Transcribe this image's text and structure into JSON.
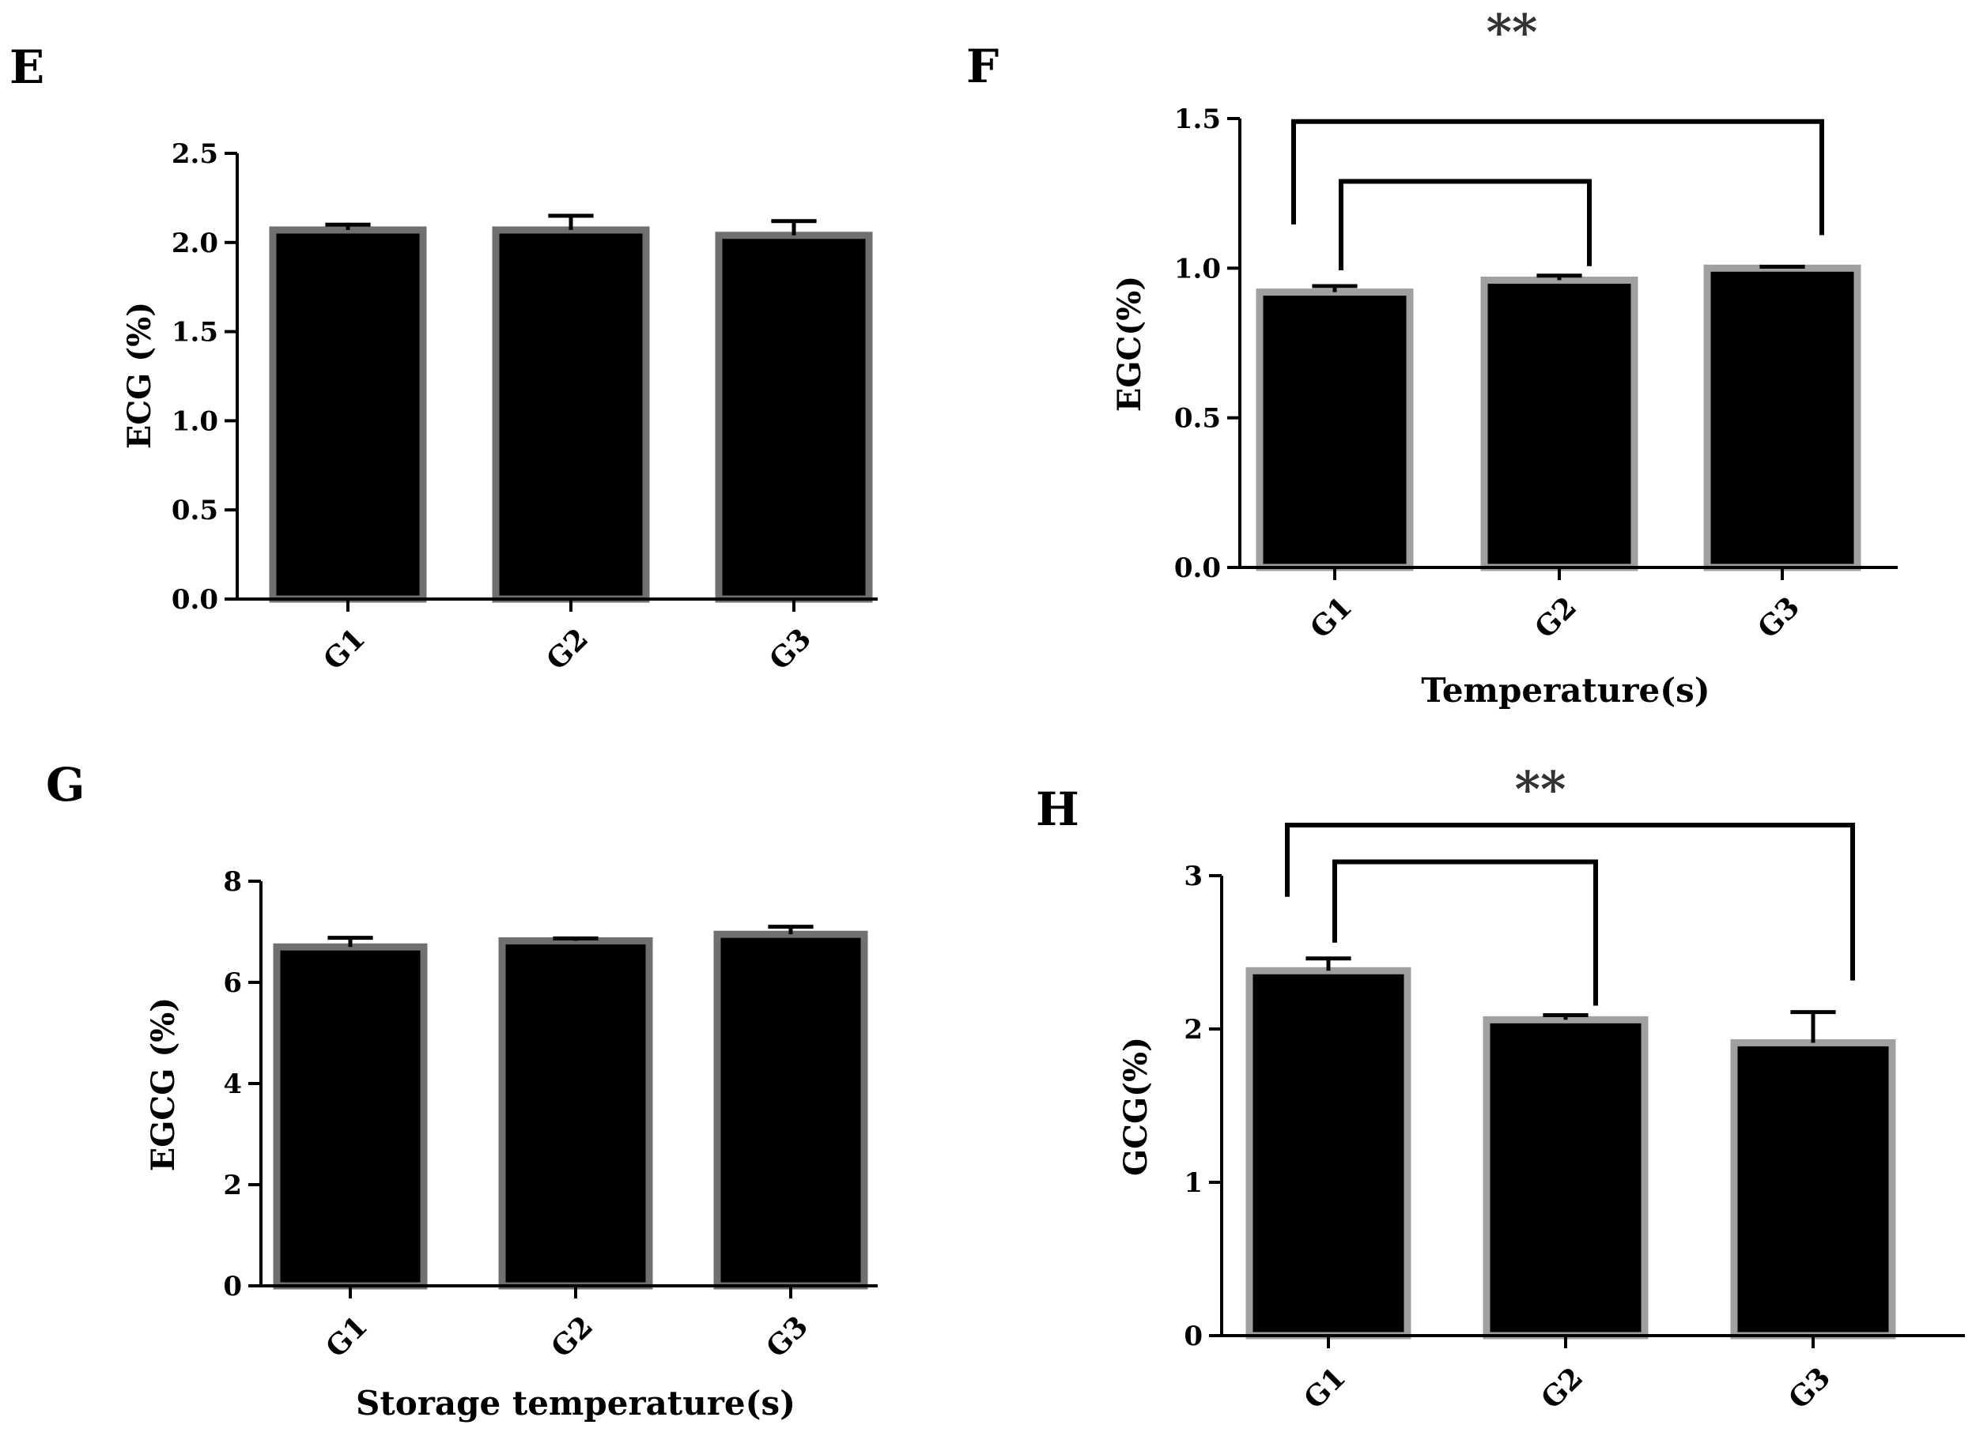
{
  "chart_data": [
    {
      "type": "bar",
      "panel": "E",
      "categories": [
        "G1",
        "G2",
        "G3"
      ],
      "values": [
        2.07,
        2.07,
        2.04
      ],
      "errors": [
        0.03,
        0.08,
        0.08
      ],
      "ylabel": "ECG (%)",
      "xlabel": "",
      "ylim": [
        0,
        2.5
      ],
      "yticks": [
        "0.0",
        "0.5",
        "1.0",
        "1.5",
        "2.0",
        "2.5"
      ],
      "significance": null,
      "bar_outline": "#707070"
    },
    {
      "type": "bar",
      "panel": "F",
      "categories": [
        "G1",
        "G2",
        "G3"
      ],
      "values": [
        0.92,
        0.96,
        1.0
      ],
      "errors": [
        0.02,
        0.015,
        0.005
      ],
      "ylabel": "EGC(%)",
      "xlabel": "Temperature(s)",
      "ylim": [
        0,
        1.5
      ],
      "yticks": [
        "0.0",
        "0.5",
        "1.0",
        "1.5"
      ],
      "significance": {
        "label": "**",
        "brackets": [
          {
            "from": "G1",
            "to": "G3",
            "level": 1.49
          },
          {
            "from": "G1",
            "to": "G2",
            "level": 1.29
          }
        ]
      },
      "bar_outline": "#a0a0a0"
    },
    {
      "type": "bar",
      "panel": "G",
      "categories": [
        "G1",
        "G2",
        "G3"
      ],
      "values": [
        6.7,
        6.82,
        6.95
      ],
      "errors": [
        0.18,
        0.05,
        0.15
      ],
      "ylabel": "EGCG (%)",
      "xlabel": "Storage temperature(s)",
      "ylim": [
        0,
        8
      ],
      "yticks": [
        "0",
        "2",
        "4",
        "6",
        "8"
      ],
      "significance": null,
      "bar_outline": "#707070"
    },
    {
      "type": "bar",
      "panel": "H",
      "categories": [
        "G1",
        "G2",
        "G3"
      ],
      "values": [
        2.38,
        2.06,
        1.91
      ],
      "errors": [
        0.08,
        0.03,
        0.2
      ],
      "ylabel": "GCG(%)",
      "xlabel": "",
      "ylim": [
        0,
        3
      ],
      "yticks": [
        "0",
        "1",
        "2",
        "3"
      ],
      "significance": {
        "label": "**",
        "brackets": [
          {
            "from": "G1",
            "to": "G3",
            "level": 3.33
          },
          {
            "from": "G1",
            "to": "G2",
            "level": 3.09
          }
        ]
      },
      "bar_outline": "#a0a0a0"
    }
  ]
}
